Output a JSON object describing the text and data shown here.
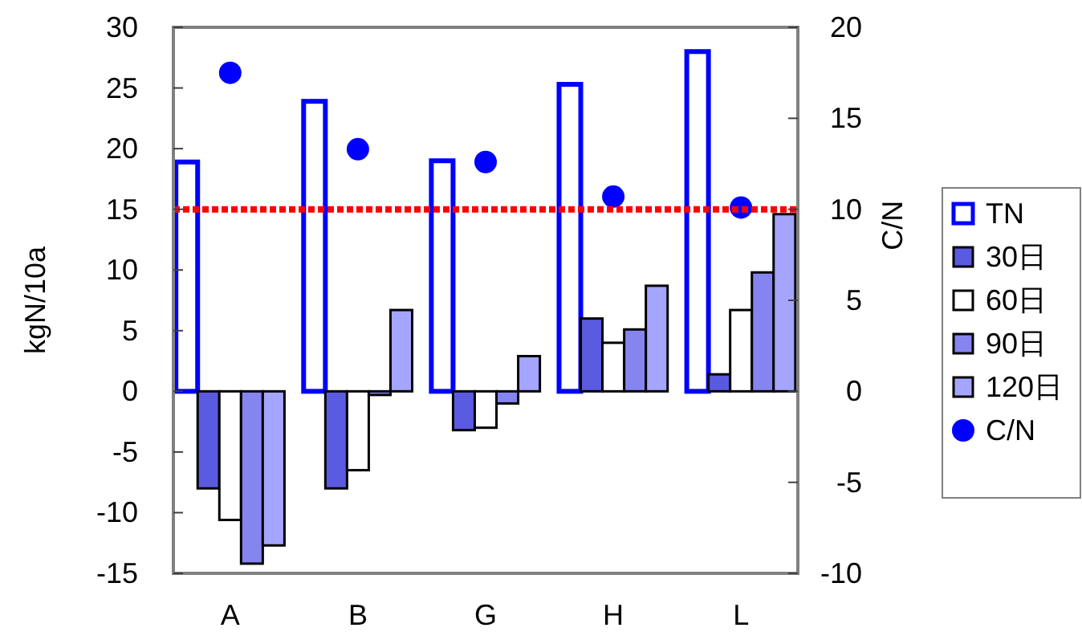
{
  "chart_data": {
    "type": "bar",
    "categories": [
      "A",
      "B",
      "G",
      "H",
      "L"
    ],
    "ylabel": "kgN/10a",
    "y2label": "C/N",
    "ylim": [
      -15,
      30
    ],
    "yticks": [
      -15,
      -10,
      -5,
      0,
      5,
      10,
      15,
      20,
      25,
      30
    ],
    "y2lim": [
      -10,
      20
    ],
    "y2ticks": [
      -10,
      -5,
      0,
      5,
      10,
      15,
      20
    ],
    "series": [
      {
        "name": "TN",
        "color": "#0000ff",
        "values": [
          18.9,
          23.9,
          19.0,
          25.3,
          28.0
        ]
      },
      {
        "name": "30日",
        "color": "#5a5ae0",
        "values": [
          -8.0,
          -8.0,
          -3.2,
          6.0,
          1.4
        ]
      },
      {
        "name": "60日",
        "color": "#ffffff",
        "values": [
          -10.6,
          -6.5,
          -3.0,
          4.0,
          6.7
        ]
      },
      {
        "name": "90日",
        "color": "#8585f0",
        "values": [
          -14.2,
          -0.3,
          -1.0,
          5.1,
          9.8
        ]
      },
      {
        "name": "120日",
        "color": "#a5a5ff",
        "values": [
          -12.7,
          6.7,
          2.9,
          8.7,
          14.6
        ]
      },
      {
        "name": "C/N",
        "type": "scatter",
        "axis": "y2",
        "color": "#0000ff",
        "marker": "circle",
        "x": [
          "A",
          "B",
          "G",
          "H",
          "L"
        ],
        "values": [
          17.5,
          13.3,
          12.6,
          10.7,
          10.1
        ]
      }
    ],
    "ref_lines": [
      {
        "axis": "y2",
        "value": 10,
        "color": "#ff0000",
        "line_style": "dotted"
      }
    ],
    "grid": false,
    "legend": "right"
  }
}
